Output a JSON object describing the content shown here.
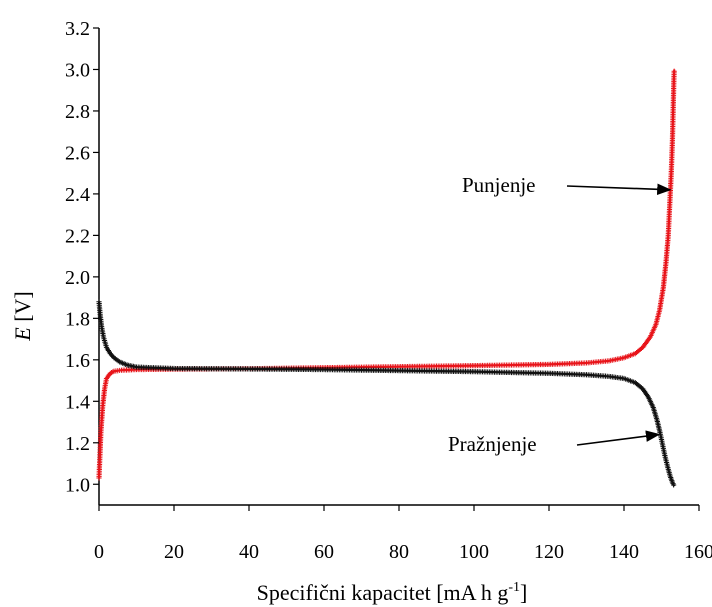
{
  "chart_data": {
    "type": "scatter",
    "title": "",
    "xlabel": "Specifični kapacitet [mA h g",
    "xlabel_sup": "-1",
    "xlabel_end": "]",
    "ylabel_italic": "E",
    "ylabel_rest": " [V]",
    "xlim": [
      0,
      160
    ],
    "ylim": [
      0.9,
      3.2
    ],
    "xticks": [
      0,
      20,
      40,
      60,
      80,
      100,
      120,
      140,
      160
    ],
    "yticks": [
      1.0,
      1.2,
      1.4,
      1.6,
      1.8,
      2.0,
      2.2,
      2.4,
      2.6,
      2.8,
      3.0,
      3.2
    ],
    "grid": false,
    "legend": "none",
    "series": [
      {
        "key": "charge",
        "color": "#e8141a",
        "marker": "plus",
        "points": [
          [
            0,
            1.03
          ],
          [
            0.2,
            1.12
          ],
          [
            0.5,
            1.25
          ],
          [
            1,
            1.38
          ],
          [
            1.5,
            1.46
          ],
          [
            2,
            1.51
          ],
          [
            3,
            1.535
          ],
          [
            4,
            1.545
          ],
          [
            6,
            1.55
          ],
          [
            10,
            1.553
          ],
          [
            20,
            1.555
          ],
          [
            40,
            1.557
          ],
          [
            60,
            1.562
          ],
          [
            80,
            1.567
          ],
          [
            100,
            1.572
          ],
          [
            120,
            1.578
          ],
          [
            130,
            1.585
          ],
          [
            136,
            1.595
          ],
          [
            140,
            1.61
          ],
          [
            143,
            1.63
          ],
          [
            145,
            1.66
          ],
          [
            147,
            1.71
          ],
          [
            148.5,
            1.77
          ],
          [
            149.5,
            1.84
          ],
          [
            150.5,
            1.95
          ],
          [
            151.2,
            2.07
          ],
          [
            151.8,
            2.2
          ],
          [
            152.2,
            2.35
          ],
          [
            152.6,
            2.5
          ],
          [
            152.9,
            2.65
          ],
          [
            153.1,
            2.8
          ],
          [
            153.3,
            2.95
          ],
          [
            153.4,
            3.0
          ]
        ]
      },
      {
        "key": "discharge",
        "color": "#111111",
        "marker": "plus",
        "points": [
          [
            0,
            1.88
          ],
          [
            0.3,
            1.82
          ],
          [
            0.7,
            1.76
          ],
          [
            1.2,
            1.71
          ],
          [
            2,
            1.66
          ],
          [
            3,
            1.63
          ],
          [
            4,
            1.61
          ],
          [
            5.5,
            1.59
          ],
          [
            7.5,
            1.575
          ],
          [
            10,
            1.565
          ],
          [
            20,
            1.558
          ],
          [
            40,
            1.556
          ],
          [
            60,
            1.553
          ],
          [
            80,
            1.548
          ],
          [
            100,
            1.543
          ],
          [
            120,
            1.535
          ],
          [
            130,
            1.528
          ],
          [
            136,
            1.52
          ],
          [
            140,
            1.51
          ],
          [
            143,
            1.49
          ],
          [
            145,
            1.46
          ],
          [
            146.5,
            1.42
          ],
          [
            147.8,
            1.37
          ],
          [
            148.8,
            1.31
          ],
          [
            149.6,
            1.25
          ],
          [
            150.3,
            1.19
          ],
          [
            151,
            1.13
          ],
          [
            151.7,
            1.08
          ],
          [
            152.3,
            1.04
          ],
          [
            152.9,
            1.01
          ],
          [
            153.4,
            0.99
          ]
        ]
      }
    ],
    "annotations": [
      {
        "key": "charge",
        "text": "Punjenje",
        "target": [
          152.3,
          2.42
        ]
      },
      {
        "key": "discharge",
        "text": "Pražnjenje",
        "target": [
          149.3,
          1.24
        ]
      }
    ]
  }
}
